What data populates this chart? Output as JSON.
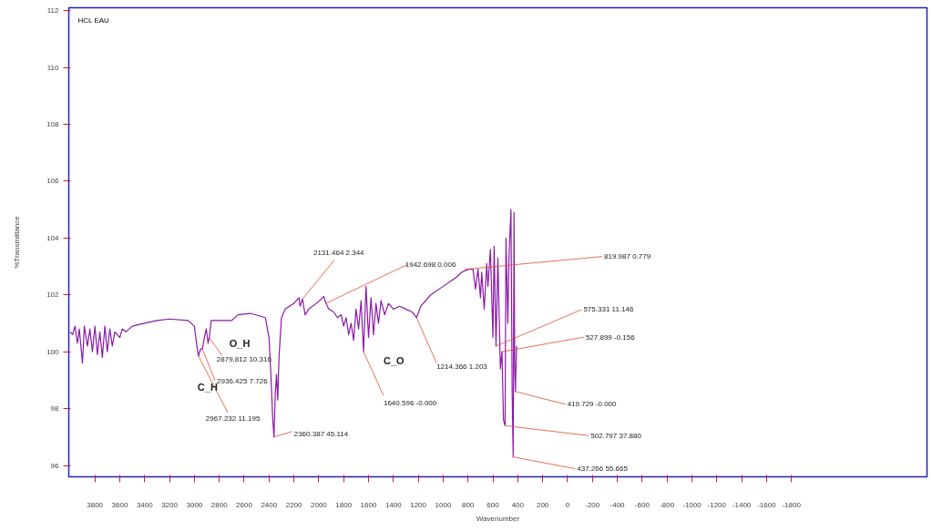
{
  "chart_data": {
    "type": "line",
    "title": "HCL EAU",
    "xlabel": "Wavenumber",
    "ylabel": "%Transmittance",
    "xlim": [
      4010,
      -2890
    ],
    "xticks": [
      3800,
      3600,
      3400,
      3200,
      3000,
      2800,
      2600,
      2400,
      2200,
      2000,
      1800,
      1600,
      1400,
      1200,
      1000,
      800,
      600,
      400,
      200,
      0,
      -200,
      -400,
      -600,
      -800,
      -1000,
      -1200,
      -1400,
      -1600,
      -1800
    ],
    "ylim": [
      95.6,
      112.1
    ],
    "yticks": [
      96,
      98,
      100,
      102,
      104,
      106,
      108,
      110,
      112
    ],
    "grid": false,
    "marker": "none",
    "line_style": "solid",
    "series": [
      {
        "color": "#8a1aa8",
        "x": [
          4000,
          3980,
          3960,
          3940,
          3925,
          3900,
          3885,
          3860,
          3840,
          3820,
          3800,
          3780,
          3760,
          3740,
          3720,
          3700,
          3680,
          3660,
          3640,
          3600,
          3580,
          3550,
          3500,
          3400,
          3300,
          3200,
          3050,
          3000,
          2980,
          2967,
          2950,
          2936,
          2920,
          2905,
          2890,
          2880,
          2865,
          2700,
          2650,
          2550,
          2430,
          2400,
          2385,
          2370,
          2360,
          2350,
          2340,
          2330,
          2320,
          2300,
          2270,
          2200,
          2160,
          2150,
          2131,
          2110,
          2080,
          2020,
          1980,
          1960,
          1942,
          1920,
          1880,
          1850,
          1820,
          1800,
          1780,
          1760,
          1740,
          1720,
          1700,
          1680,
          1660,
          1640,
          1620,
          1600,
          1580,
          1560,
          1540,
          1520,
          1500,
          1470,
          1440,
          1400,
          1350,
          1300,
          1250,
          1214,
          1180,
          1100,
          1000,
          900,
          850,
          800,
          760,
          740,
          720,
          700,
          690,
          670,
          650,
          640,
          620,
          600,
          590,
          575,
          560,
          540,
          527,
          515,
          502,
          495,
          480,
          470,
          455,
          445,
          437,
          430,
          425,
          419,
          410
        ],
        "values": [
          100.7,
          100.6,
          100.9,
          100.3,
          100.8,
          99.6,
          100.9,
          100.2,
          100.8,
          100.0,
          100.9,
          99.9,
          100.7,
          99.8,
          100.9,
          100.0,
          100.8,
          100.2,
          100.7,
          100.5,
          100.8,
          100.7,
          100.9,
          101.0,
          101.1,
          101.15,
          101.1,
          100.9,
          100.2,
          99.85,
          100.1,
          100.1,
          100.5,
          100.8,
          100.3,
          100.5,
          101.1,
          101.1,
          101.3,
          101.35,
          101.2,
          100.5,
          99.2,
          97.6,
          97.0,
          98.5,
          99.2,
          98.3,
          99.8,
          101.2,
          101.5,
          101.7,
          101.9,
          101.6,
          101.85,
          101.3,
          101.5,
          101.7,
          101.85,
          101.95,
          101.7,
          101.5,
          101.4,
          101.2,
          101.3,
          100.9,
          101.2,
          100.6,
          101.0,
          100.4,
          101.5,
          100.8,
          101.8,
          100.0,
          102.3,
          100.5,
          101.9,
          100.6,
          101.7,
          101.0,
          101.8,
          101.3,
          101.7,
          101.5,
          101.6,
          101.5,
          101.4,
          101.2,
          101.6,
          102.0,
          102.3,
          102.6,
          102.8,
          102.9,
          102.9,
          102.2,
          102.9,
          101.9,
          102.8,
          101.5,
          103.1,
          102.3,
          103.6,
          100.5,
          103.7,
          100.2,
          103.3,
          99.4,
          100.0,
          97.6,
          97.4,
          104.0,
          101.0,
          103.4,
          105.0,
          98.5,
          96.3,
          104.9,
          99.6,
          98.6,
          100.2
        ]
      }
    ],
    "annotations": [
      {
        "text": "2967.232  11.195",
        "x": 2967.232,
        "y": 99.85
      },
      {
        "text": "2936.425  7.726",
        "x": 2936.425,
        "y": 100.1
      },
      {
        "text": "2879.812  10.316",
        "x": 2879.812,
        "y": 100.5
      },
      {
        "text": "2360.387  45.114",
        "x": 2360.387,
        "y": 97.0
      },
      {
        "text": "2131.464  2.344",
        "x": 2131.464,
        "y": 101.85
      },
      {
        "text": "1942.698  0.006",
        "x": 1942.698,
        "y": 101.7
      },
      {
        "text": "1640.596  -0.000",
        "x": 1640.596,
        "y": 100.0
      },
      {
        "text": "1214.366  1.203",
        "x": 1214.366,
        "y": 101.2
      },
      {
        "text": "819.987  0.779",
        "x": 819.987,
        "y": 102.9
      },
      {
        "text": "575.331  11.146",
        "x": 575.331,
        "y": 100.2
      },
      {
        "text": "527.899  -0.156",
        "x": 527.899,
        "y": 100.0
      },
      {
        "text": "419.729  -0.000",
        "x": 419.729,
        "y": 98.6
      },
      {
        "text": "502.797  37.880",
        "x": 502.797,
        "y": 97.4
      },
      {
        "text": "437.266  55.665",
        "x": 437.266,
        "y": 96.3
      },
      {
        "text": "O_H",
        "x": 2879.812,
        "y": 100.5
      },
      {
        "text": "C_H",
        "x": 2967.232,
        "y": 99.85
      },
      {
        "text": "C_O",
        "x": 1640.596,
        "y": 100.0
      }
    ]
  }
}
